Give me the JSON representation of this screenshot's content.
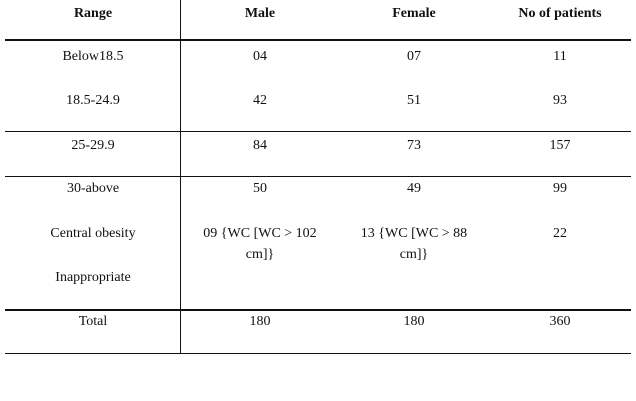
{
  "table": {
    "headers": [
      "Range",
      "Male",
      "Female",
      "No of patients"
    ],
    "rows": [
      {
        "range": "Below18.5",
        "male": "04",
        "female": "07",
        "total": "11"
      },
      {
        "range": "18.5-24.9",
        "male": "42",
        "female": "51",
        "total": "93"
      },
      {
        "range": "25-29.9",
        "male": "84",
        "female": "73",
        "total": "157"
      },
      {
        "range": "30-above",
        "male": "50",
        "female": "49",
        "total": "99"
      },
      {
        "range": "Central obesity",
        "male_line1": "09 {WC [WC > 102",
        "male_line2": "cm]}",
        "female_line1": "13 {WC [WC > 88",
        "female_line2": "cm]}",
        "total": "22"
      },
      {
        "range": "Inappropriate"
      },
      {
        "range": "Total",
        "male": "180",
        "female": "180",
        "total": "360"
      }
    ]
  }
}
